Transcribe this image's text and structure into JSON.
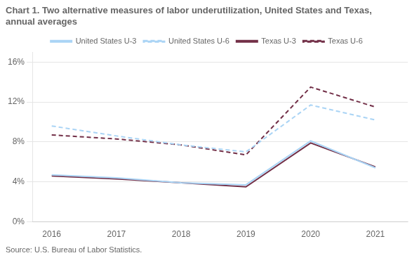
{
  "chart_data": {
    "type": "line",
    "title": "Chart 1. Two alternative measures of labor underutilization, United States and Texas, annual averages",
    "source": "Source: U.S. Bureau of Labor Statistics.",
    "x": [
      2016,
      2017,
      2018,
      2019,
      2020,
      2021
    ],
    "series": [
      {
        "name": "United States U-3",
        "color": "#aad4f5",
        "line_style": "solid",
        "values": [
          4.7,
          4.4,
          3.9,
          3.7,
          8.1,
          5.4
        ]
      },
      {
        "name": "United States U-6",
        "color": "#aad4f5",
        "line_style": "dashed",
        "values": [
          9.6,
          8.6,
          7.7,
          7.0,
          11.7,
          10.2
        ]
      },
      {
        "name": "Texas U-3",
        "color": "#722f47",
        "line_style": "solid",
        "values": [
          4.6,
          4.3,
          3.9,
          3.5,
          7.9,
          5.5
        ]
      },
      {
        "name": "Texas U-6",
        "color": "#722f47",
        "line_style": "dashed",
        "values": [
          8.7,
          8.3,
          7.7,
          6.7,
          13.5,
          11.5
        ]
      }
    ],
    "xlim": [
      2015.7,
      2021.5
    ],
    "xticks": [
      2016,
      2017,
      2018,
      2019,
      2020,
      2021
    ],
    "ylim": [
      0,
      17
    ],
    "yticks": [
      {
        "value": 0,
        "label": "0%"
      },
      {
        "value": 4,
        "label": "4%"
      },
      {
        "value": 8,
        "label": "8%"
      },
      {
        "value": 12,
        "label": "12%"
      },
      {
        "value": 16,
        "label": "16%"
      }
    ],
    "grid": "y",
    "legend": "top"
  }
}
